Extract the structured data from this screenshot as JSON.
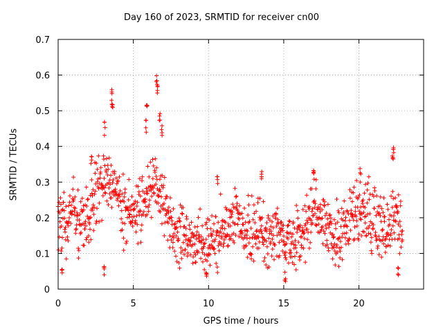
{
  "chart_data": {
    "type": "scatter",
    "title": "Day 160 of 2023, SRMTID for receiver cn00",
    "xlabel": "GPS time / hours",
    "ylabel": "SRMTID / TECUs",
    "xlim": [
      0,
      24.3
    ],
    "ylim": [
      0,
      0.7
    ],
    "xticks": [
      0,
      5,
      10,
      15,
      20
    ],
    "xtick_labels": [
      "0",
      "5",
      "10",
      "15",
      "20"
    ],
    "yticks": [
      0,
      0.1,
      0.2,
      0.3,
      0.4,
      0.5,
      0.6,
      0.7
    ],
    "ytick_labels": [
      "0",
      "0.1",
      "0.2",
      "0.3",
      "0.4",
      "0.5",
      "0.6",
      "0.7"
    ],
    "grid": true,
    "marker": "+",
    "color": "#ff0000",
    "series": [
      {
        "name": "SRMTID",
        "profile_x": [
          0,
          0.5,
          1,
          1.5,
          2,
          2.5,
          3,
          3.5,
          4,
          4.5,
          5,
          5.5,
          6,
          6.5,
          7,
          7.5,
          8,
          8.5,
          9,
          9.5,
          10,
          10.5,
          11,
          11.5,
          12,
          12.5,
          13,
          13.5,
          14,
          14.5,
          15,
          15.5,
          16,
          16.5,
          17,
          17.5,
          18,
          18.5,
          19,
          19.5,
          20,
          20.5,
          21,
          21.5,
          22,
          22.5,
          22.9
        ],
        "profile_y": [
          0.2,
          0.19,
          0.22,
          0.18,
          0.2,
          0.27,
          0.28,
          0.31,
          0.26,
          0.21,
          0.24,
          0.22,
          0.26,
          0.29,
          0.24,
          0.18,
          0.15,
          0.13,
          0.14,
          0.12,
          0.12,
          0.14,
          0.16,
          0.2,
          0.19,
          0.17,
          0.16,
          0.17,
          0.13,
          0.15,
          0.14,
          0.12,
          0.15,
          0.18,
          0.22,
          0.19,
          0.16,
          0.15,
          0.17,
          0.21,
          0.22,
          0.21,
          0.19,
          0.17,
          0.16,
          0.2,
          0.15
        ],
        "spread": 0.07,
        "spikes": [
          {
            "x": 3.55,
            "y": 0.56
          },
          {
            "x": 3.6,
            "y": 0.52
          },
          {
            "x": 3.1,
            "y": 0.47
          },
          {
            "x": 2.2,
            "y": 0.38
          },
          {
            "x": 5.9,
            "y": 0.52
          },
          {
            "x": 5.85,
            "y": 0.48
          },
          {
            "x": 6.55,
            "y": 0.6
          },
          {
            "x": 6.6,
            "y": 0.58
          },
          {
            "x": 6.75,
            "y": 0.5
          },
          {
            "x": 6.9,
            "y": 0.46
          },
          {
            "x": 3.05,
            "y": 0.07
          },
          {
            "x": 0.25,
            "y": 0.06
          },
          {
            "x": 9.85,
            "y": 0.05
          },
          {
            "x": 10.6,
            "y": 0.32
          },
          {
            "x": 13.55,
            "y": 0.33
          },
          {
            "x": 15.1,
            "y": 0.05
          },
          {
            "x": 17.0,
            "y": 0.34
          },
          {
            "x": 20.1,
            "y": 0.34
          },
          {
            "x": 22.3,
            "y": 0.4
          },
          {
            "x": 22.25,
            "y": 0.38
          },
          {
            "x": 22.6,
            "y": 0.06
          }
        ]
      }
    ]
  }
}
